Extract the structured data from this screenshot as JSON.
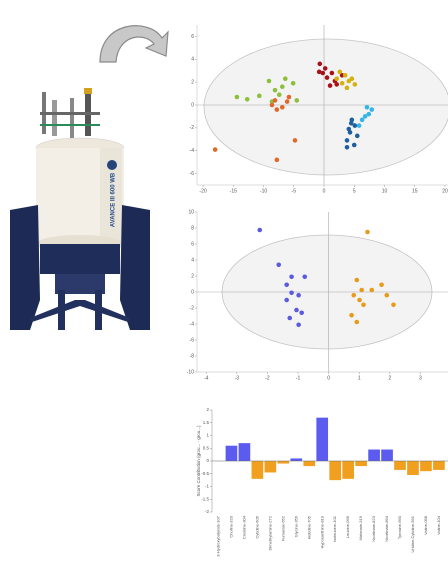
{
  "illustration": {
    "label": "AVANCE III 600 WB"
  },
  "chart_data": [
    {
      "type": "scatter",
      "xlim": [
        -21,
        20.5
      ],
      "ylim": [
        -7,
        7
      ],
      "xticks": [
        -20,
        -15,
        -10,
        -5,
        0,
        5,
        10,
        15,
        20
      ],
      "yticks": [
        -6,
        -4,
        -2,
        0,
        2,
        4,
        6
      ],
      "zero_lines": true,
      "series": [
        {
          "color": "#a8101a",
          "x": [
            -0.7,
            0.2,
            -0.2,
            0.5,
            1.3,
            1.8,
            2.1,
            1.0,
            -0.8,
            3.0
          ],
          "y": [
            3.6,
            3.2,
            2.8,
            2.4,
            2.8,
            2.1,
            1.8,
            1.7,
            2.9,
            2.6
          ]
        },
        {
          "color": "#d6b00c",
          "x": [
            2.6,
            3.5,
            4.1,
            3.0,
            4.6,
            3.8,
            5.1,
            2.1
          ],
          "y": [
            2.9,
            2.6,
            2.1,
            1.9,
            2.3,
            1.5,
            1.8,
            2.3
          ]
        },
        {
          "color": "#8cbf3a",
          "x": [
            -9.1,
            -8.1,
            -6.4,
            -5.1,
            -10.7,
            -14.4,
            -7.4,
            -8.6,
            -12.7,
            -4.5,
            -6.9
          ],
          "y": [
            2.1,
            1.3,
            2.3,
            1.9,
            0.8,
            0.7,
            0.9,
            0.3,
            0.5,
            0.4,
            1.6
          ]
        },
        {
          "color": "#e0682a",
          "x": [
            -18,
            -7.8,
            -4.8,
            -6.1,
            -6.9,
            -8.6,
            -5.8,
            -7.8,
            -8.1
          ],
          "y": [
            -3.9,
            -4.8,
            -3.1,
            0.3,
            -0.2,
            0,
            0.7,
            -0.4,
            0.4
          ]
        },
        {
          "color": "#35b4e6",
          "x": [
            7.1,
            7.4,
            6.3,
            5.8,
            7.9,
            6.8
          ],
          "y": [
            -0.2,
            -0.8,
            -1.3,
            -1.8,
            -0.4,
            -1.0
          ]
        },
        {
          "color": "#1f5fa0",
          "x": [
            4.6,
            5.1,
            4.3,
            3.8,
            5.0,
            4.1,
            5.5,
            4.5,
            3.8
          ],
          "y": [
            -1.3,
            -1.8,
            -2.4,
            -3.1,
            -3.5,
            -2.1,
            -2.7,
            -1.6,
            -3.7
          ]
        }
      ]
    },
    {
      "type": "scatter",
      "xlim": [
        -4.3,
        3.9
      ],
      "ylim": [
        -10,
        10
      ],
      "xticks": [
        -4,
        -3,
        -2,
        -1,
        0,
        1,
        2,
        3
      ],
      "yticks": [
        -10,
        -8,
        -6,
        -4,
        -2,
        0,
        2,
        4,
        6,
        8,
        10
      ],
      "zero_lines": true,
      "series": [
        {
          "color": "#5b5be0",
          "x": [
            -2.25,
            -1.63,
            -1.21,
            -0.78,
            -1.37,
            -1.21,
            -0.98,
            -1.37,
            -1.05,
            -1.27,
            -0.98,
            -0.88
          ],
          "y": [
            7.75,
            3.4,
            1.9,
            1.9,
            0.9,
            -0.1,
            -0.4,
            -1.0,
            -2.25,
            -3.25,
            -4.1,
            -2.6
          ]
        },
        {
          "color": "#e89a1c",
          "x": [
            1.27,
            0.92,
            1.08,
            0.82,
            1.41,
            1.73,
            1.9,
            2.12,
            1.01,
            0.75,
            1.14,
            0.92
          ],
          "y": [
            7.5,
            1.5,
            0.25,
            -0.4,
            0.25,
            0.9,
            -0.4,
            -1.6,
            -1.0,
            -2.9,
            -1.6,
            -3.75
          ]
        }
      ]
    },
    {
      "type": "bar",
      "y_label": "Score Contribution (grou... - grou...)",
      "ylim": [
        -2,
        2
      ],
      "yticks": [
        -2,
        -1.5,
        -1,
        -0.5,
        0,
        0.5,
        1,
        1.5,
        2
      ],
      "categories": [
        "3-Hydroxybutyrate-107",
        "Choline-320",
        "Creatine-304",
        "Cytidine-606",
        "Dimethylamine-272",
        "Fumarate-652",
        "Glycine-356",
        "Histidine-705",
        "Hypoxanthine-819",
        "Isoleucine-101",
        "Leucine-096",
        "Malonate-319",
        "Nicotinate-823",
        "Nicotinate-894",
        "Tyrosine-690",
        "Uridine-Cytidine-591",
        "Valine-098",
        "Valine-104"
      ],
      "values": [
        0,
        0.6,
        0.7,
        -0.7,
        -0.45,
        -0.1,
        0.1,
        -0.2,
        1.7,
        -0.75,
        -0.7,
        -0.2,
        0.45,
        0.45,
        -0.35,
        -0.55,
        -0.4,
        -0.35
      ],
      "colors": [
        "#5b5bef",
        "#5b5bef",
        "#5b5bef",
        "#f0a01e",
        "#f0a01e",
        "#f0a01e",
        "#5b5bef",
        "#f0a01e",
        "#5b5bef",
        "#f0a01e",
        "#f0a01e",
        "#f0a01e",
        "#5b5bef",
        "#5b5bef",
        "#f0a01e",
        "#f0a01e",
        "#f0a01e",
        "#f0a01e"
      ]
    }
  ]
}
